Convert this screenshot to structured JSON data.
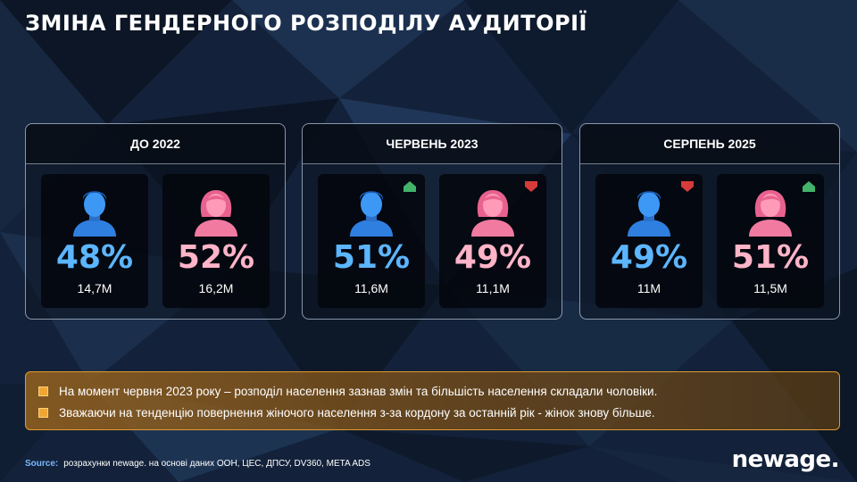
{
  "title": "ЗМІНА ГЕНДЕРНОГО РОЗПОДІЛУ АУДИТОРІЇ",
  "colors": {
    "male": "#5cb6ff",
    "female": "#ffb4c8",
    "trend_up": "#43b36a",
    "trend_down": "#d63b3b",
    "accent": "#e39b2e"
  },
  "panels": [
    {
      "heading": "ДО 2022",
      "male": {
        "percent": "48%",
        "count": "14,7M",
        "icon": "male-person-icon",
        "trend": null
      },
      "female": {
        "percent": "52%",
        "count": "16,2M",
        "icon": "female-person-icon",
        "trend": null
      }
    },
    {
      "heading": "ЧЕРВЕНЬ 2023",
      "male": {
        "percent": "51%",
        "count": "11,6M",
        "icon": "male-person-icon",
        "trend": "up"
      },
      "female": {
        "percent": "49%",
        "count": "11,1M",
        "icon": "female-person-icon",
        "trend": "down"
      }
    },
    {
      "heading": "СЕРПЕНЬ 2025",
      "male": {
        "percent": "49%",
        "count": "11M",
        "icon": "male-person-icon",
        "trend": "down"
      },
      "female": {
        "percent": "51%",
        "count": "11,5M",
        "icon": "female-person-icon",
        "trend": "up"
      }
    }
  ],
  "notes": [
    "На момент червня 2023 року – розподіл населення зазнав змін та більшість населення складали чоловіки.",
    "Зважаючи на тенденцію повернення жіночого населення з-за кордону за останній рік - жінок знову більше."
  ],
  "source": {
    "label": "Source:",
    "text": "розрахунки newage. на основі даних ООН, ЦЕС, ДПСУ, DV360, META ADS"
  },
  "logo": "newage."
}
